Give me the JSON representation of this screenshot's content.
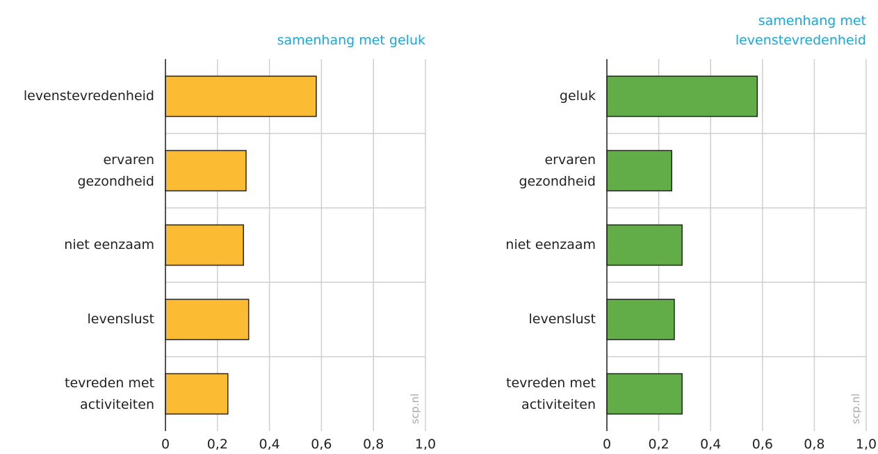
{
  "chart_data": [
    {
      "type": "bar",
      "orientation": "horizontal",
      "title": "samenhang met geluk",
      "categories": [
        "levenstevredenheid",
        "ervaren\ngezondheid",
        "niet eenzaam",
        "levenslust",
        "tevreden met\nactiviteiten"
      ],
      "values": [
        0.58,
        0.31,
        0.3,
        0.32,
        0.24
      ],
      "color": "#fbbc33",
      "xlim": [
        0,
        1.0
      ],
      "xticks": [
        0,
        {
          "value": 0.2,
          "label": "0,2"
        },
        {
          "value": 0.4,
          "label": "0,4"
        },
        {
          "value": 0.6,
          "label": "0,6"
        },
        {
          "value": 0.8,
          "label": "0,8"
        },
        {
          "value": 1.0,
          "label": "1,0"
        }
      ],
      "grid": true,
      "watermark": "scp.nl"
    },
    {
      "type": "bar",
      "orientation": "horizontal",
      "title": "samenhang met\nlevenstevredenheid",
      "categories": [
        "geluk",
        "ervaren\ngezondheid",
        "niet eenzaam",
        "levenslust",
        "tevreden met\nactiviteiten"
      ],
      "values": [
        0.58,
        0.25,
        0.29,
        0.26,
        0.29
      ],
      "color": "#62ad47",
      "xlim": [
        0,
        1.0
      ],
      "xticks": [
        0,
        {
          "value": 0.2,
          "label": "0,2"
        },
        {
          "value": 0.4,
          "label": "0,4"
        },
        {
          "value": 0.6,
          "label": "0,6"
        },
        {
          "value": 0.8,
          "label": "0,8"
        },
        {
          "value": 1.0,
          "label": "1,0"
        }
      ],
      "grid": true,
      "watermark": "scp.nl"
    }
  ]
}
